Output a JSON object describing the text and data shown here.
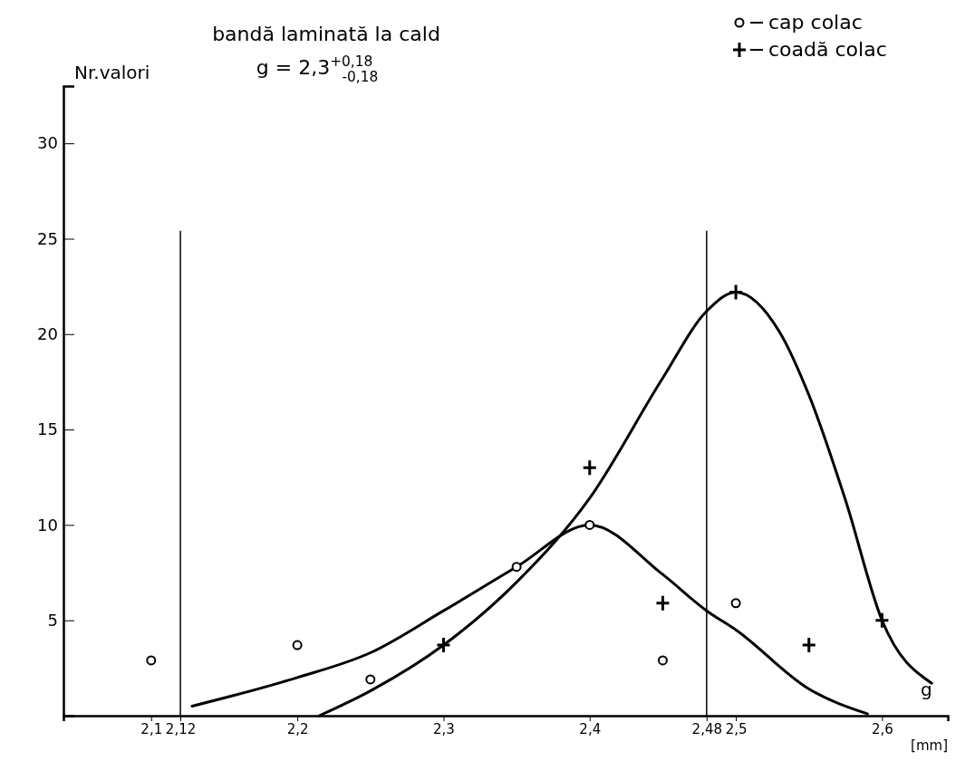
{
  "chart_data": {
    "type": "scatter",
    "title": "bandă laminată la cald",
    "subtitle": "g = 2,3$^{+0,18}$$_{-0,18}$",
    "xlabel": "g",
    "ylabel": "Nr.valori",
    "annotations": [
      "[mm]"
    ],
    "xlim": [
      2.04,
      2.645
    ],
    "xticks": [
      {
        "value": 2.1,
        "label": "2,1"
      },
      {
        "value": 2.12,
        "label": "2,12"
      },
      {
        "value": 2.2,
        "label": "2,2"
      },
      {
        "value": 2.3,
        "label": "2,3"
      },
      {
        "value": 2.4,
        "label": "2,4"
      },
      {
        "value": 2.48,
        "label": "2,48"
      },
      {
        "value": 2.5,
        "label": "2,5"
      },
      {
        "value": 2.6,
        "label": "2,6"
      }
    ],
    "ylim": [
      0,
      33
    ],
    "yticks": [
      5,
      10,
      15,
      20,
      25,
      30
    ],
    "legend": "top right",
    "ref_lines": [
      {
        "axis": "x",
        "value": 2.12,
        "color": "#000000",
        "line_style": "solid"
      },
      {
        "axis": "x",
        "value": 2.48,
        "color": "#000000",
        "line_style": "solid"
      }
    ],
    "series": [
      {
        "name": "cap colac",
        "type": "scatter",
        "marker": "circle",
        "color": "#000000",
        "x": [
          2.1,
          2.2,
          2.25,
          2.35,
          2.4,
          2.45,
          2.5
        ],
        "values": [
          2.9,
          3.7,
          1.9,
          7.8,
          10,
          2.9,
          5.9
        ]
      },
      {
        "name": "coadă colac",
        "type": "scatter",
        "marker": "cross",
        "color": "#000000",
        "x": [
          2.3,
          2.4,
          2.45,
          2.5,
          2.55,
          2.6
        ],
        "values": [
          3.7,
          13,
          5.9,
          22.2,
          3.7,
          5.0
        ]
      },
      {
        "type": "line",
        "marker": "none",
        "line_style": "solid",
        "color": "#000000",
        "x": [
          2.128,
          2.2,
          2.25,
          2.3,
          2.35,
          2.4,
          2.45,
          2.48,
          2.5,
          2.55,
          2.59
        ],
        "values": [
          0.5,
          2.0,
          3.3,
          5.5,
          7.8,
          10,
          7.4,
          5.5,
          4.5,
          1.4,
          0.1
        ]
      },
      {
        "type": "line",
        "marker": "none",
        "line_style": "solid",
        "color": "#000000",
        "x": [
          2.215,
          2.25,
          2.3,
          2.35,
          2.4,
          2.45,
          2.48,
          2.5,
          2.53,
          2.55,
          2.575,
          2.6,
          2.634
        ],
        "values": [
          0,
          1.3,
          3.7,
          7.0,
          11.4,
          17.7,
          21.2,
          22.2,
          20.1,
          16.8,
          11.3,
          5.0,
          1.7
        ]
      }
    ]
  }
}
